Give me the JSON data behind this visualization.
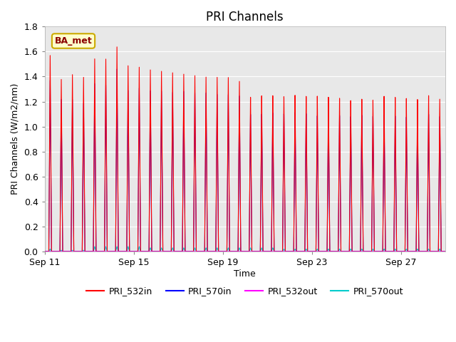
{
  "title": "PRI Channels",
  "xlabel": "Time",
  "ylabel": "PRI Channels (W/m2/nm)",
  "annotation": "BA_met",
  "ylim": [
    0.0,
    1.8
  ],
  "series": {
    "PRI_532in": {
      "color": "#ff0000",
      "lw": 0.8
    },
    "PRI_570in": {
      "color": "#0000ff",
      "lw": 0.8
    },
    "PRI_532out": {
      "color": "#ff00ff",
      "lw": 0.8
    },
    "PRI_570out": {
      "color": "#00cccc",
      "lw": 0.8
    }
  },
  "xtick_labels": [
    "Sep 11",
    "Sep 15",
    "Sep 19",
    "Sep 23",
    "Sep 27"
  ],
  "xtick_positions": [
    0,
    4,
    8,
    12,
    16
  ],
  "ytick_labels": [
    "0.0",
    "0.2",
    "0.4",
    "0.6",
    "0.8",
    "1.0",
    "1.2",
    "1.4",
    "1.6",
    "1.8"
  ],
  "fig_bg": "#ffffff",
  "plot_bg": "#e8e8e8",
  "grid_color": "#ffffff",
  "title_fontsize": 12,
  "label_fontsize": 9,
  "tick_fontsize": 9,
  "n_days": 18,
  "peaks_532in": [
    1.57,
    1.38,
    1.42,
    1.4,
    1.55,
    1.55,
    1.65,
    1.5,
    1.49,
    1.47,
    1.46,
    1.45,
    1.44,
    1.43,
    1.42,
    1.42,
    1.42,
    1.39,
    1.26,
    1.27,
    1.27,
    1.26,
    1.27,
    1.26,
    1.26,
    1.25,
    1.24,
    1.22,
    1.23,
    1.22,
    1.25,
    1.24,
    1.23,
    1.22,
    1.25,
    1.22
  ],
  "peaks_570in": [
    1.37,
    1.22,
    1.22,
    1.19,
    1.35,
    1.34,
    1.47,
    1.3,
    1.32,
    1.3,
    1.3,
    1.29,
    1.3,
    1.29,
    1.29,
    1.28,
    1.28,
    1.27,
    1.12,
    1.12,
    1.13,
    1.12,
    1.13,
    1.12,
    1.1,
    1.1,
    1.1,
    1.09,
    1.1,
    1.09,
    1.1,
    1.09,
    1.08,
    1.08,
    1.1,
    1.08
  ],
  "peaks_532out": [
    0.0,
    0.0,
    0.0,
    0.0,
    0.0,
    0.0,
    0.0,
    0.0,
    0.0,
    0.0,
    0.0,
    0.0,
    0.0,
    0.0,
    0.0,
    0.0,
    0.0,
    0.0,
    0.0,
    0.0,
    0.0,
    0.0,
    0.0,
    0.0,
    0.0,
    0.0,
    0.0,
    0.0,
    0.0,
    0.0,
    0.0,
    0.0,
    0.0,
    0.0,
    0.0,
    0.0
  ],
  "peaks_570out": [
    0.02,
    0.01,
    0.01,
    0.01,
    0.04,
    0.04,
    0.04,
    0.04,
    0.04,
    0.03,
    0.03,
    0.03,
    0.03,
    0.03,
    0.03,
    0.03,
    0.03,
    0.03,
    0.03,
    0.03,
    0.03,
    0.02,
    0.02,
    0.02,
    0.02,
    0.02,
    0.02,
    0.02,
    0.02,
    0.02,
    0.02,
    0.02,
    0.02,
    0.02,
    0.02,
    0.02
  ]
}
